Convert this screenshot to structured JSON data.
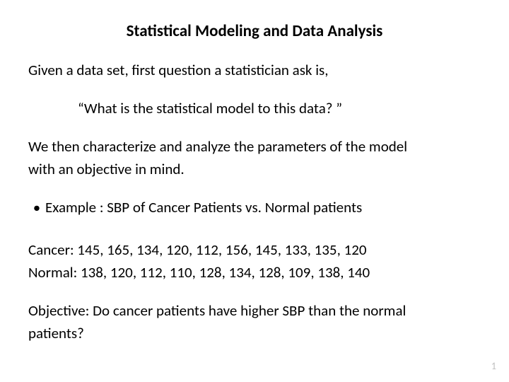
{
  "title": "Statistical Modeling and Data Analysis",
  "intro": "Given a data set, first question a statistician ask is,",
  "quote": "“What is the statistical model to this data? ”",
  "desc1": "We then characterize and analyze the parameters of the model",
  "desc2": "with an objective in mind.",
  "bullet": "Example :  SBP of Cancer Patients vs. Normal patients",
  "cancer": "Cancer:   145, 165, 134, 120, 112, 156, 145, 133, 135, 120",
  "normal": "Normal:  138, 120, 112, 110, 128, 134, 128, 109, 138, 140",
  "obj1": "Objective: Do cancer patients have higher SBP than the normal",
  "obj2": "patients?",
  "page": "1",
  "style": {
    "title_fontsize": 23,
    "body_fontsize": 21,
    "title_color": "#000000",
    "body_color": "#000000",
    "background": "#ffffff",
    "pagenum_color": "#bfbfbf"
  }
}
